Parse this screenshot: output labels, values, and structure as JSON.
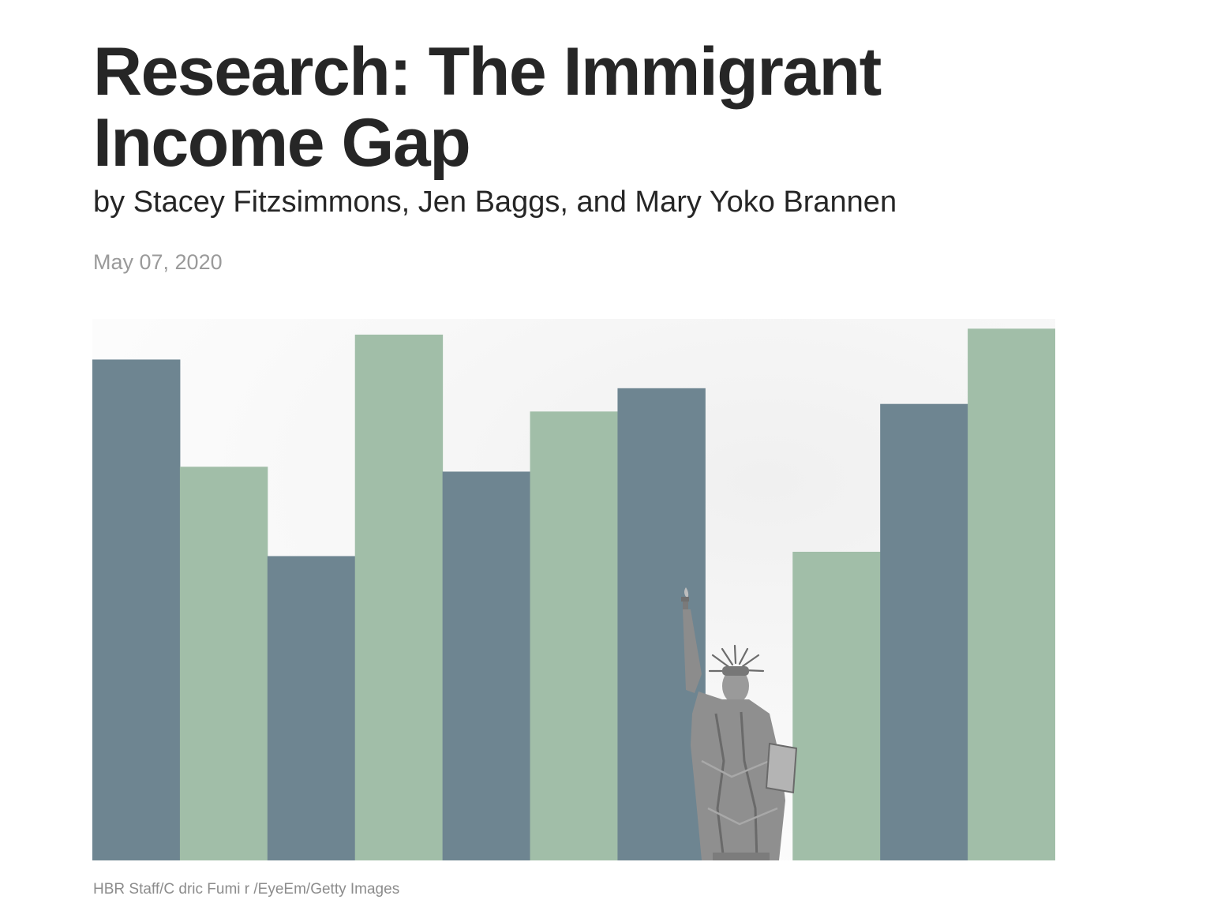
{
  "article": {
    "title": "Research: The Immigrant Income Gap",
    "byline": "by Stacey Fitzsimmons, Jen Baggs, and Mary Yoko Brannen",
    "date": "May 07, 2020"
  },
  "hero_image": {
    "icon": "statue-of-liberty-illustration",
    "colors": {
      "slate": "#6e8591",
      "sage": "#a1bea8",
      "statue": "#8e8e8e"
    },
    "bars": [
      {
        "level": 0.925,
        "color": "slate"
      },
      {
        "level": 0.727,
        "color": "sage"
      },
      {
        "level": 0.562,
        "color": "slate"
      },
      {
        "level": 0.971,
        "color": "sage"
      },
      {
        "level": 0.718,
        "color": "slate"
      },
      {
        "level": 0.829,
        "color": "sage"
      },
      {
        "level": 0.872,
        "color": "slate"
      },
      {
        "level": 0.0,
        "color": "none"
      },
      {
        "level": 0.57,
        "color": "sage"
      },
      {
        "level": 0.843,
        "color": "slate"
      },
      {
        "level": 0.982,
        "color": "sage"
      }
    ],
    "credit": "HBR Staff/C dric Fumi r /EyeEm/Getty Images"
  }
}
